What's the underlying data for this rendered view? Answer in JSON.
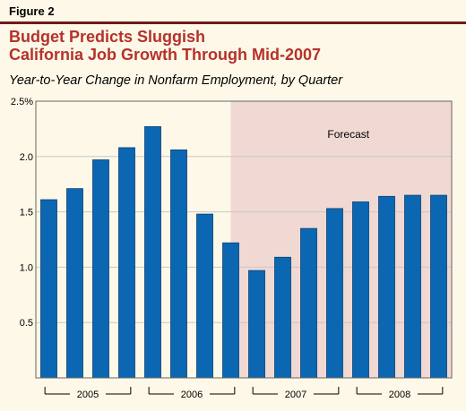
{
  "figure_label": "Figure 2",
  "title_line1": "Budget Predicts Sluggish",
  "title_line2": "California Job Growth Through Mid-2007",
  "chart_data": {
    "type": "bar",
    "subtitle": "Year-to-Year Change in Nonfarm Employment, by Quarter",
    "categories": [
      "2005 Q1",
      "2005 Q2",
      "2005 Q3",
      "2005 Q4",
      "2006 Q1",
      "2006 Q2",
      "2006 Q3",
      "2006 Q4",
      "2007 Q1",
      "2007 Q2",
      "2007 Q3",
      "2007 Q4",
      "2008 Q1",
      "2008 Q2",
      "2008 Q3",
      "2008 Q4"
    ],
    "values": [
      1.61,
      1.71,
      1.97,
      2.08,
      2.27,
      2.06,
      1.48,
      1.22,
      0.97,
      1.09,
      1.35,
      1.53,
      1.59,
      1.64,
      1.65,
      1.65
    ],
    "year_labels": [
      "2005",
      "2006",
      "2007",
      "2008"
    ],
    "yticks": [
      "0.5",
      "1.0",
      "1.5",
      "2.0",
      "2.5%"
    ],
    "ylim": [
      0,
      2.5
    ],
    "forecast_label": "Forecast",
    "forecast_start_index": 7,
    "grid": true,
    "colors": {
      "bar": "#0b67b2",
      "bar_edge": "#0a3f73",
      "plot_bg": "#fdf8e7",
      "forecast_bg": "#f0d8d3",
      "grid": "#c8c8c8",
      "title": "#b5322b"
    }
  }
}
